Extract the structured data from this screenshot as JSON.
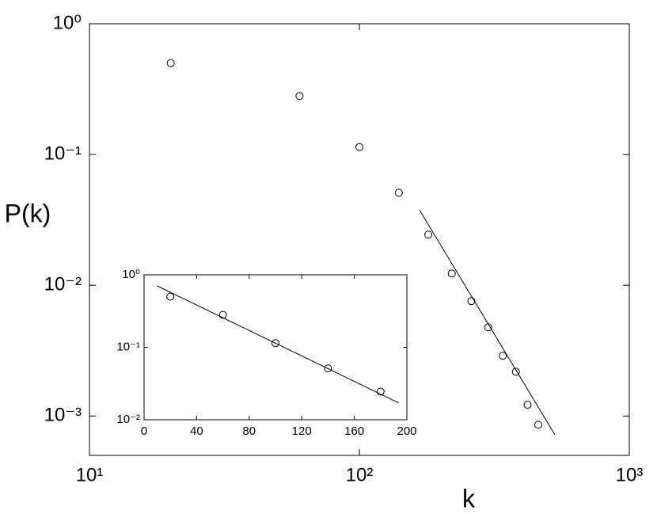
{
  "chart_data": [
    {
      "type": "scatter",
      "x_label": "k",
      "y_label": "P(k)",
      "xlog": true,
      "ylog": true,
      "xlim": [
        10,
        1000
      ],
      "ylim": [
        0.0005,
        1
      ],
      "xticks": [
        {
          "value": 10,
          "label": "10¹"
        },
        {
          "value": 100,
          "label": "10²"
        },
        {
          "value": 1000,
          "label": "10³"
        }
      ],
      "yticks": [
        {
          "value": 0.001,
          "label": "10⁻³"
        },
        {
          "value": 0.01,
          "label": "10⁻²"
        },
        {
          "value": 0.1,
          "label": "10⁻¹"
        },
        {
          "value": 1,
          "label": "10⁰"
        }
      ],
      "series": [
        {
          "type": "scatter",
          "color": "#000000",
          "x": [
            20,
            60,
            100,
            140,
            180,
            220,
            260,
            300,
            340,
            380,
            420,
            460
          ],
          "values": [
            0.5,
            0.28,
            0.114,
            0.051,
            0.0244,
            0.0123,
            0.00757,
            0.00477,
            0.00289,
            0.00218,
            0.00122,
            0.000857
          ]
        },
        {
          "type": "line",
          "color": "#000000",
          "x": [
            167,
            530
          ],
          "values": [
            0.0377,
            0.00072
          ]
        }
      ]
    },
    {
      "type": "scatter",
      "xlog": false,
      "ylog": true,
      "xlim": [
        0,
        200
      ],
      "ylim": [
        0.01,
        1
      ],
      "xticks": [
        0,
        40,
        80,
        120,
        160,
        200
      ],
      "yticks": [
        {
          "value": 0.01,
          "label": "10⁻²"
        },
        {
          "value": 0.1,
          "label": "10⁻¹"
        },
        {
          "value": 1,
          "label": "10⁰"
        }
      ],
      "series": [
        {
          "type": "scatter",
          "color": "#000000",
          "x": [
            20,
            60,
            100,
            140,
            180
          ],
          "values": [
            0.5,
            0.28,
            0.114,
            0.051,
            0.0244
          ]
        },
        {
          "type": "line",
          "color": "#000000",
          "x": [
            10,
            194
          ],
          "values": [
            0.703,
            0.017
          ]
        }
      ]
    }
  ]
}
